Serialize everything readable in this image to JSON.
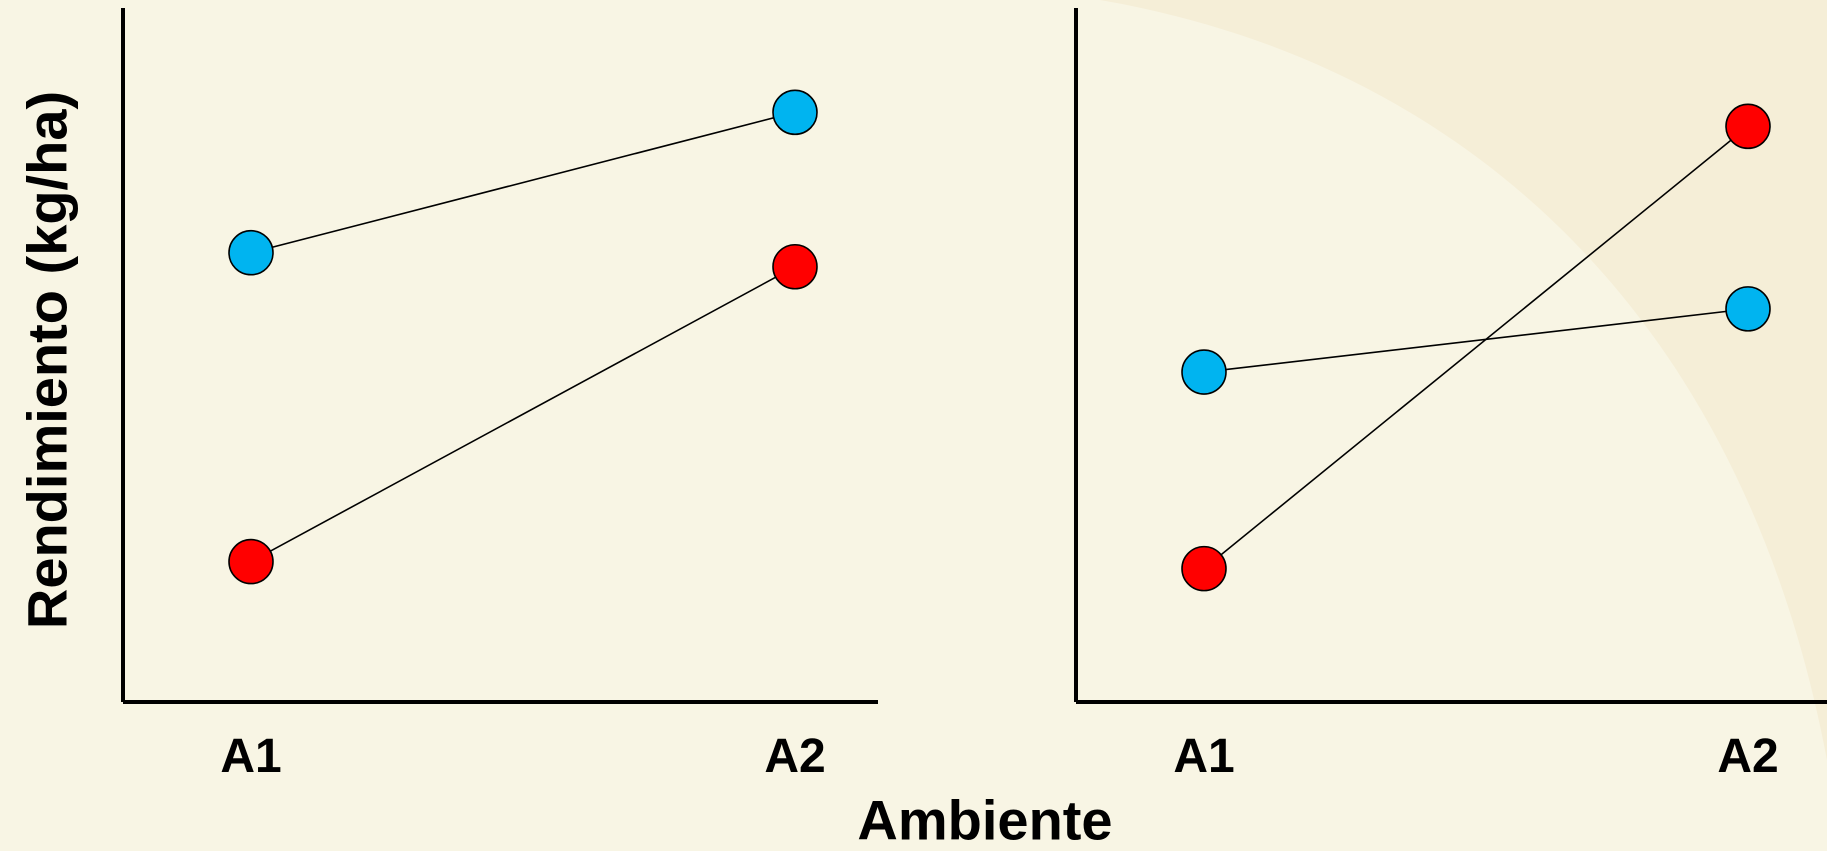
{
  "ylabel": "Rendimiento (kg/ha)",
  "xlabel": "Ambiente",
  "colors": {
    "background": "#f8f5e4",
    "blue_series": "#00b4f0",
    "red_series": "#ff0000"
  },
  "chart_data": [
    {
      "type": "line",
      "categories": [
        "A1",
        "A2"
      ],
      "ylim": [
        0,
        100
      ],
      "grid": false,
      "series": [
        {
          "color": "#00b4f0",
          "values": [
            64,
            84
          ]
        },
        {
          "color": "#ff0000",
          "values": [
            20,
            62
          ]
        }
      ]
    },
    {
      "type": "line",
      "categories": [
        "A1",
        "A2"
      ],
      "ylim": [
        0,
        100
      ],
      "grid": false,
      "series": [
        {
          "color": "#00b4f0",
          "values": [
            47,
            56
          ]
        },
        {
          "color": "#ff0000",
          "values": [
            19,
            82
          ]
        }
      ]
    }
  ]
}
